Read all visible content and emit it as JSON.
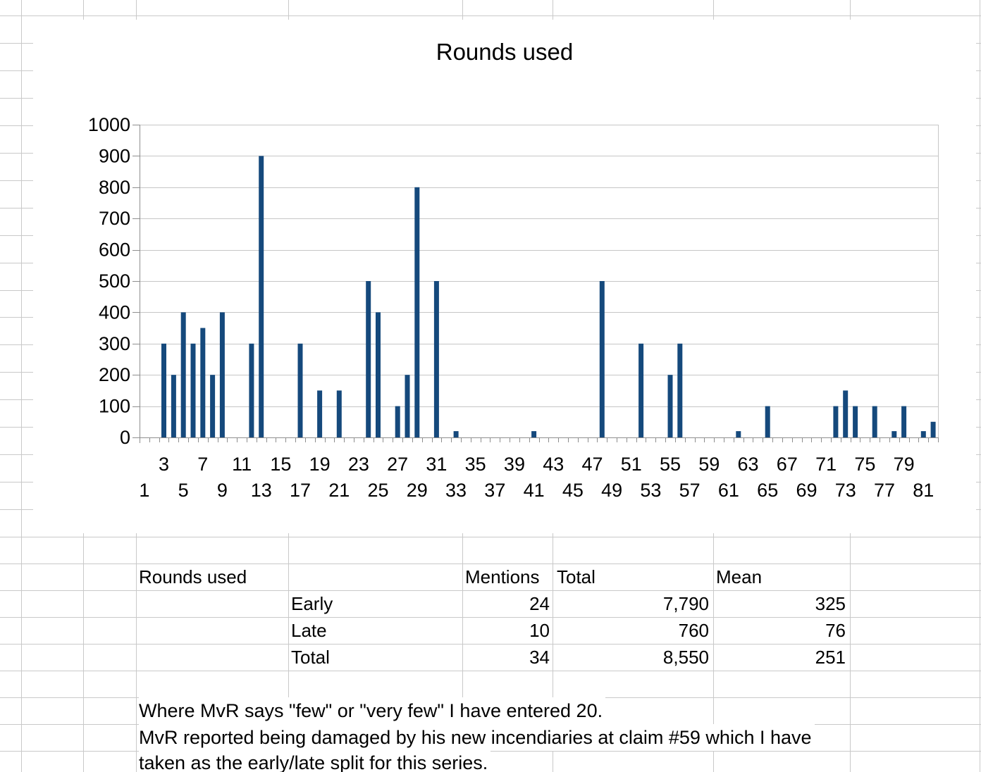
{
  "chart_data": {
    "type": "bar",
    "title": "Rounds used",
    "bar_color": "#15497c",
    "grid": "horizontal gridlines on",
    "legend": "none",
    "y_axis": {
      "min": 0,
      "max": 1000,
      "step": 100,
      "tick_labels": [
        "0",
        "100",
        "200",
        "300",
        "400",
        "500",
        "600",
        "700",
        "800",
        "900",
        "1000"
      ]
    },
    "x_axis": {
      "min_category": 1,
      "max_category": 82,
      "tick_label_row_upper": [
        "3",
        "7",
        "11",
        "15",
        "19",
        "23",
        "27",
        "31",
        "35",
        "39",
        "43",
        "47",
        "51",
        "55",
        "59",
        "63",
        "67",
        "71",
        "75",
        "79"
      ],
      "tick_label_row_lower": [
        "1",
        "5",
        "9",
        "13",
        "17",
        "21",
        "25",
        "29",
        "33",
        "37",
        "41",
        "45",
        "49",
        "53",
        "57",
        "61",
        "65",
        "69",
        "73",
        "77",
        "81"
      ]
    },
    "series": [
      {
        "name": "Rounds used",
        "points": [
          [
            3,
            300
          ],
          [
            4,
            200
          ],
          [
            5,
            400
          ],
          [
            6,
            300
          ],
          [
            7,
            350
          ],
          [
            8,
            200
          ],
          [
            9,
            400
          ],
          [
            12,
            300
          ],
          [
            13,
            900
          ],
          [
            17,
            300
          ],
          [
            19,
            150
          ],
          [
            21,
            150
          ],
          [
            24,
            500
          ],
          [
            25,
            400
          ],
          [
            27,
            100
          ],
          [
            28,
            200
          ],
          [
            29,
            800
          ],
          [
            31,
            500
          ],
          [
            33,
            20
          ],
          [
            41,
            20
          ],
          [
            48,
            500
          ],
          [
            52,
            300
          ],
          [
            55,
            200
          ],
          [
            56,
            300
          ],
          [
            62,
            20
          ],
          [
            65,
            100
          ],
          [
            72,
            100
          ],
          [
            73,
            150
          ],
          [
            74,
            100
          ],
          [
            76,
            100
          ],
          [
            78,
            20
          ],
          [
            79,
            100
          ],
          [
            81,
            20
          ],
          [
            82,
            50
          ]
        ]
      }
    ]
  },
  "table": {
    "title_cell": "Rounds used",
    "headers": {
      "mentions": "Mentions",
      "total": "Total",
      "mean": "Mean"
    },
    "rows": [
      {
        "label": "Early",
        "mentions": "24",
        "total": "7,790",
        "mean": "325"
      },
      {
        "label": "Late",
        "mentions": "10",
        "total": "760",
        "mean": "76"
      },
      {
        "label": "Total",
        "mentions": "34",
        "total": "8,550",
        "mean": "251"
      }
    ]
  },
  "notes": {
    "line1": "Where MvR says \"few\" or \"very few\" I have entered 20.",
    "line2": "MvR reported being damaged by his new incendiaries at claim #59 which I have",
    "line3": "taken as the early/late split for this series."
  },
  "colors": {
    "sheet_gridline": "#c9c9c9",
    "chart_gridline": "#c6c6c6",
    "axis_line": "#8e8e8e",
    "text": "#000000",
    "background": "#ffffff"
  }
}
